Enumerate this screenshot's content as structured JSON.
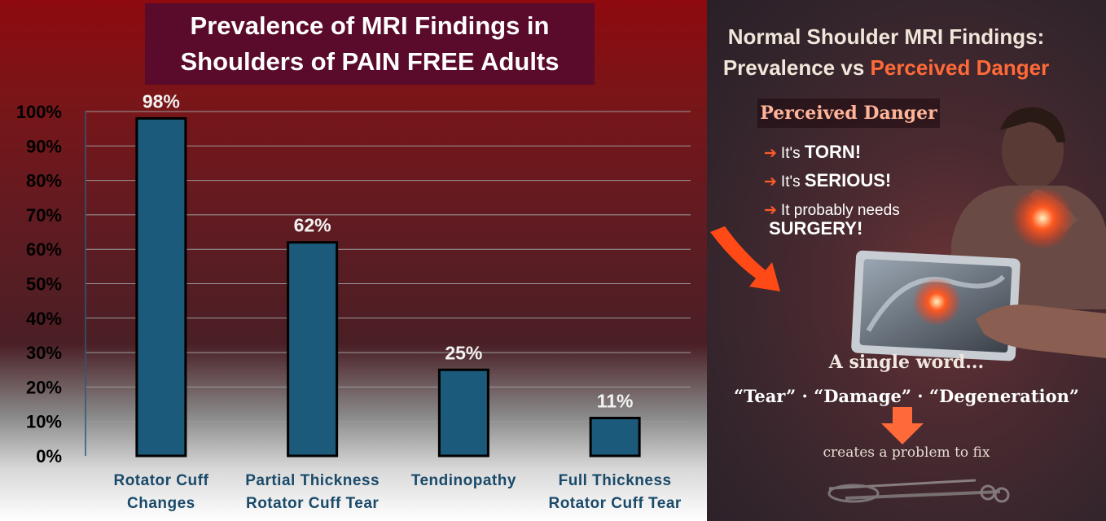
{
  "chart_data": {
    "type": "bar",
    "title_lines": [
      "Prevalence of MRI Findings in",
      "Shoulders of PAIN FREE Adults"
    ],
    "categories": [
      [
        "Rotator Cuff",
        "Changes"
      ],
      [
        "Partial Thickness",
        "Rotator Cuff Tear"
      ],
      [
        "Tendinopathy"
      ],
      [
        "Full Thickness",
        "Rotator Cuff Tear"
      ]
    ],
    "values": [
      98,
      62,
      25,
      11
    ],
    "data_labels": [
      "98%",
      "62%",
      "25%",
      "11%"
    ],
    "y_ticks": [
      "0%",
      "10%",
      "20%",
      "30%",
      "40%",
      "50%",
      "60%",
      "70%",
      "80%",
      "90%",
      "100%"
    ],
    "ylim": [
      0,
      100
    ],
    "grid": true,
    "bar_color": "#1b5a7a"
  },
  "infographic": {
    "title_line1": "Normal Shoulder MRI Findings:",
    "title_line2_a": "Prevalence vs ",
    "title_line2_b": "Perceived Danger",
    "danger_heading": "Perceived Danger",
    "items": [
      {
        "pre": "It's ",
        "bold": "TORN!"
      },
      {
        "pre": "It's ",
        "bold": "SERIOUS!"
      },
      {
        "pre": "It probably needs",
        "bold": "SURGERY!"
      }
    ],
    "arrow_glyph": "➔",
    "single_word": "A single word...",
    "words": "“Tear” · “Damage” · “Degeneration”",
    "creates": "creates a problem to fix",
    "accent_color": "#ff5a2a"
  }
}
